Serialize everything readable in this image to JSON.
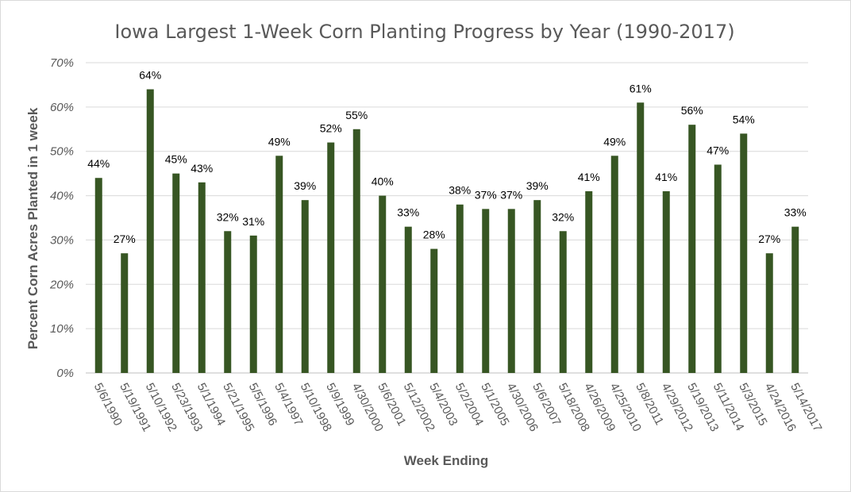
{
  "chart_data": {
    "type": "bar",
    "title": "Iowa Largest 1-Week Corn Planting Progress by Year (1990-2017)",
    "xlabel": "Week Ending",
    "ylabel": "Percent Corn Acres Planted in 1 week",
    "ylim": [
      0,
      70
    ],
    "y_ticks": [
      "0%",
      "10%",
      "20%",
      "30%",
      "40%",
      "50%",
      "60%",
      "70%"
    ],
    "grid": true,
    "legend": "none",
    "bar_color": "#375623",
    "categories": [
      "5/6/1990",
      "5/19/1991",
      "5/10/1992",
      "5/23/1993",
      "5/1/1994",
      "5/21/1995",
      "5/5/1996",
      "5/4/1997",
      "5/10/1998",
      "5/9/1999",
      "4/30/2000",
      "5/6/2001",
      "5/12/2002",
      "5/4/2003",
      "5/2/2004",
      "5/1/2005",
      "4/30/2006",
      "5/6/2007",
      "5/18/2008",
      "4/26/2009",
      "4/25/2010",
      "5/8/2011",
      "4/29/2012",
      "5/19/2013",
      "5/11/2014",
      "5/3/2015",
      "4/24/2016",
      "5/14/2017"
    ],
    "values": [
      44,
      27,
      64,
      45,
      43,
      32,
      31,
      49,
      39,
      52,
      55,
      40,
      33,
      28,
      38,
      37,
      37,
      39,
      32,
      41,
      49,
      61,
      41,
      56,
      47,
      54,
      27,
      33
    ],
    "data_labels": [
      "44%",
      "27%",
      "64%",
      "45%",
      "43%",
      "32%",
      "31%",
      "49%",
      "39%",
      "52%",
      "55%",
      "40%",
      "33%",
      "28%",
      "38%",
      "37%",
      "37%",
      "39%",
      "32%",
      "41%",
      "49%",
      "61%",
      "41%",
      "56%",
      "47%",
      "54%",
      "27%",
      "33%"
    ]
  }
}
